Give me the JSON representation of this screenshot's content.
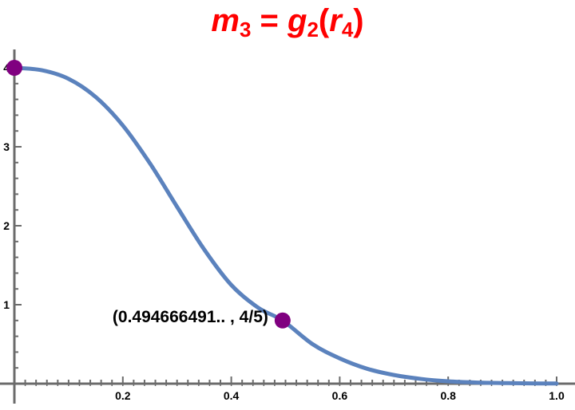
{
  "title": {
    "m": "m",
    "m_sub": "3",
    "eq": " = ",
    "g": "g",
    "g_sub": "2",
    "open": "(",
    "r": "r",
    "r_sub": "4",
    "close": ")",
    "color": "#ff0000"
  },
  "chart_data": {
    "type": "line",
    "xlim": [
      0,
      1
    ],
    "ylim": [
      0,
      4
    ],
    "x_ticks": [
      0.2,
      0.4,
      0.6,
      0.8,
      1.0
    ],
    "x_tick_labels": [
      "0.2",
      "0.4",
      "0.6",
      "0.8",
      "1.0"
    ],
    "y_ticks": [
      1,
      2,
      3,
      4
    ],
    "y_tick_labels": [
      "1",
      "2",
      "3",
      "4"
    ],
    "series": [
      {
        "color": "#5b82bd",
        "x": [
          0,
          0.05,
          0.1,
          0.15,
          0.2,
          0.25,
          0.3,
          0.35,
          0.4,
          0.45,
          0.494666491,
          0.55,
          0.6,
          0.65,
          0.7,
          0.75,
          0.8,
          0.85,
          0.9,
          0.95,
          1.0
        ],
        "y": [
          4.0,
          3.97,
          3.86,
          3.63,
          3.27,
          2.79,
          2.24,
          1.7,
          1.25,
          0.96,
          0.8,
          0.5,
          0.32,
          0.19,
          0.11,
          0.06,
          0.03,
          0.015,
          0.008,
          0.004,
          0.002
        ]
      }
    ],
    "points": [
      {
        "x": 0,
        "y": 4,
        "color": "#800080"
      },
      {
        "x": 0.494666491,
        "y": 0.8,
        "color": "#800080"
      }
    ],
    "annotation": {
      "text": "(0.494666491.. , 4/5)",
      "x": 0.494666491,
      "y": 0.8
    },
    "grid": false
  }
}
